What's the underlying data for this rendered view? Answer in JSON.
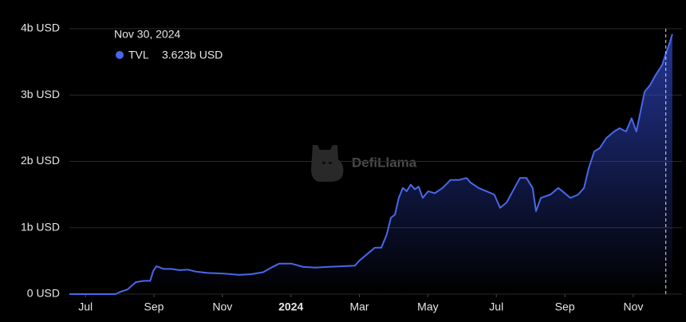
{
  "chart_data": {
    "type": "area",
    "watermark": "DefiLlama",
    "series": [
      {
        "name": "TVL",
        "color": "#4a67ea",
        "x": [
          -0.47,
          0.88,
          1.0,
          1.23,
          1.47,
          1.7,
          1.89,
          1.98,
          2.07,
          2.28,
          2.52,
          2.75,
          2.98,
          3.21,
          3.56,
          4.03,
          4.49,
          4.84,
          5.19,
          5.43,
          5.66,
          6.01,
          6.36,
          6.71,
          7.06,
          7.52,
          7.87,
          7.99,
          8.22,
          8.45,
          8.64,
          8.8,
          8.92,
          9.04,
          9.15,
          9.27,
          9.38,
          9.5,
          9.62,
          9.73,
          9.85,
          10.01,
          10.2,
          10.43,
          10.66,
          10.9,
          11.13,
          11.25,
          11.48,
          11.71,
          11.94,
          12.11,
          12.3,
          12.53,
          12.69,
          12.88,
          13.06,
          13.16,
          13.3,
          13.58,
          13.81,
          13.93,
          14.16,
          14.39,
          14.56,
          14.7,
          14.86,
          15.02,
          15.21,
          15.44,
          15.6,
          15.79,
          15.95,
          16.09,
          16.21,
          16.33,
          16.49,
          16.65,
          16.84,
          16.95,
          17.07,
          17.14
        ],
        "values": [
          0,
          0,
          0.03,
          0.07,
          0.18,
          0.2,
          0.2,
          0.35,
          0.42,
          0.38,
          0.38,
          0.36,
          0.37,
          0.34,
          0.32,
          0.31,
          0.29,
          0.3,
          0.33,
          0.4,
          0.46,
          0.46,
          0.41,
          0.4,
          0.41,
          0.42,
          0.43,
          0.5,
          0.6,
          0.7,
          0.7,
          0.9,
          1.15,
          1.2,
          1.45,
          1.6,
          1.55,
          1.65,
          1.58,
          1.62,
          1.45,
          1.55,
          1.52,
          1.6,
          1.72,
          1.72,
          1.75,
          1.68,
          1.6,
          1.55,
          1.5,
          1.3,
          1.38,
          1.6,
          1.75,
          1.75,
          1.6,
          1.25,
          1.45,
          1.5,
          1.6,
          1.55,
          1.45,
          1.5,
          1.6,
          1.9,
          2.15,
          2.2,
          2.35,
          2.45,
          2.5,
          2.45,
          2.65,
          2.45,
          2.75,
          3.05,
          3.15,
          3.3,
          3.45,
          3.623,
          3.8,
          3.92
        ]
      }
    ],
    "xlim": [
      -0.47,
      17.19
    ],
    "xticks": [
      {
        "value": 0,
        "label": "Jul"
      },
      {
        "value": 2,
        "label": "Sep"
      },
      {
        "value": 4,
        "label": "Nov"
      },
      {
        "value": 6,
        "label": "2024"
      },
      {
        "value": 8,
        "label": "Mar"
      },
      {
        "value": 10,
        "label": "May"
      },
      {
        "value": 12,
        "label": "Jul"
      },
      {
        "value": 14,
        "label": "Sep"
      },
      {
        "value": 16,
        "label": "Nov"
      }
    ],
    "ylim": [
      0,
      4
    ],
    "yticks": [
      {
        "value": 0,
        "label": "0 USD"
      },
      {
        "value": 1,
        "label": "1b USD"
      },
      {
        "value": 2,
        "label": "2b USD"
      },
      {
        "value": 3,
        "label": "3b USD"
      },
      {
        "value": 4,
        "label": "4b USD"
      }
    ],
    "grid": true,
    "tooltip": {
      "title": "Nov 30, 2024",
      "x": 16.95,
      "value": 3.623,
      "value_label": "3.623b USD"
    }
  }
}
